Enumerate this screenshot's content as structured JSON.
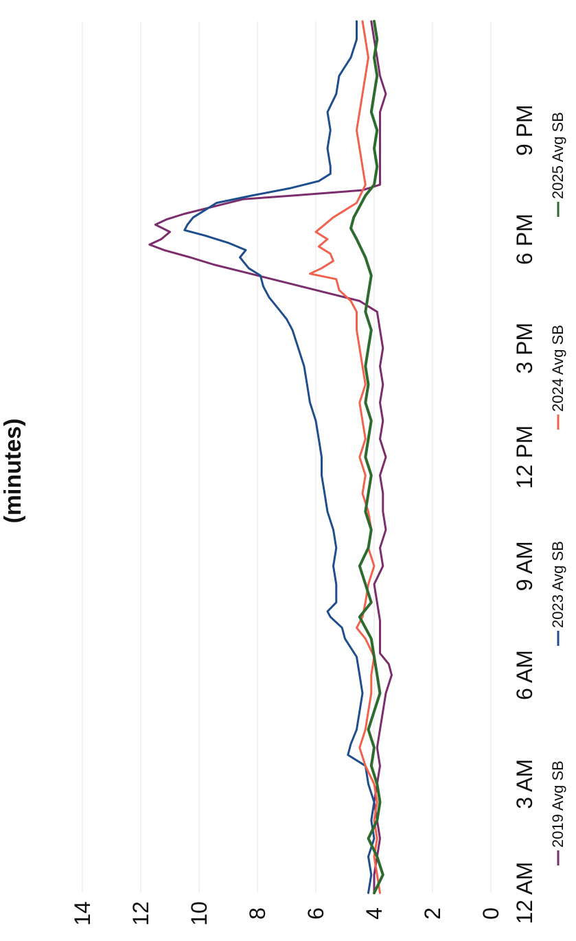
{
  "chart_data": {
    "type": "line",
    "title": "(minutes)",
    "xlabel": "",
    "ylabel": "",
    "ylim": [
      0,
      14
    ],
    "yticks": [
      "0",
      "2",
      "4",
      "6",
      "8",
      "10",
      "12",
      "14"
    ],
    "xticks": [
      "12 AM",
      "3 AM",
      "6 AM",
      "9 AM",
      "12 PM",
      "3 PM",
      "6 PM",
      "9 PM"
    ],
    "xlim_hours": [
      0,
      24
    ],
    "grid": true,
    "legend_position": "bottom",
    "series": [
      {
        "name": "2019 Avg SB",
        "color": "#7b2d6e",
        "points": [
          [
            0,
            4.0
          ],
          [
            0.5,
            4.0
          ],
          [
            1,
            3.9
          ],
          [
            1.5,
            3.8
          ],
          [
            2,
            3.9
          ],
          [
            2.5,
            4.0
          ],
          [
            3,
            3.9
          ],
          [
            3.5,
            3.8
          ],
          [
            4,
            3.9
          ],
          [
            4.5,
            3.8
          ],
          [
            5,
            3.7
          ],
          [
            5.5,
            3.6
          ],
          [
            6,
            3.4
          ],
          [
            6.3,
            3.5
          ],
          [
            6.6,
            3.8
          ],
          [
            7,
            3.8
          ],
          [
            7.5,
            3.8
          ],
          [
            8,
            3.9
          ],
          [
            8.5,
            4.0
          ],
          [
            9,
            3.7
          ],
          [
            9.5,
            3.8
          ],
          [
            10,
            3.6
          ],
          [
            10.5,
            3.7
          ],
          [
            11,
            3.7
          ],
          [
            11.5,
            3.8
          ],
          [
            12,
            3.6
          ],
          [
            12.5,
            3.8
          ],
          [
            13,
            3.7
          ],
          [
            13.5,
            3.8
          ],
          [
            14,
            3.7
          ],
          [
            14.5,
            3.8
          ],
          [
            15,
            3.7
          ],
          [
            15.5,
            3.8
          ],
          [
            16,
            3.9
          ],
          [
            16.3,
            4.5
          ],
          [
            16.5,
            5.5
          ],
          [
            16.7,
            6.5
          ],
          [
            16.9,
            7.5
          ],
          [
            17.1,
            8.5
          ],
          [
            17.3,
            9.5
          ],
          [
            17.5,
            10.3
          ],
          [
            17.7,
            11.2
          ],
          [
            17.85,
            11.7
          ],
          [
            18,
            11.3
          ],
          [
            18.2,
            11.0
          ],
          [
            18.4,
            11.5
          ],
          [
            18.55,
            11.1
          ],
          [
            18.7,
            10.5
          ],
          [
            18.9,
            9.5
          ],
          [
            19.1,
            8.5
          ],
          [
            19.2,
            6.8
          ],
          [
            19.35,
            4.4
          ],
          [
            19.5,
            3.8
          ],
          [
            20,
            3.8
          ],
          [
            20.5,
            3.8
          ],
          [
            21,
            3.8
          ],
          [
            21.5,
            3.8
          ],
          [
            22,
            3.6
          ],
          [
            22.5,
            3.8
          ],
          [
            23,
            3.9
          ],
          [
            23.5,
            4.0
          ],
          [
            24,
            4.1
          ]
        ]
      },
      {
        "name": "2023 Avg SB",
        "color": "#1f4e8c",
        "points": [
          [
            0,
            4.2
          ],
          [
            0.5,
            4.1
          ],
          [
            1,
            4.2
          ],
          [
            1.5,
            4.0
          ],
          [
            2,
            4.1
          ],
          [
            2.5,
            4.0
          ],
          [
            3,
            4.2
          ],
          [
            3.5,
            4.3
          ],
          [
            3.8,
            4.9
          ],
          [
            4.1,
            4.8
          ],
          [
            4.5,
            4.6
          ],
          [
            5,
            4.5
          ],
          [
            5.5,
            4.4
          ],
          [
            6,
            4.5
          ],
          [
            6.5,
            4.6
          ],
          [
            7,
            5.0
          ],
          [
            7.3,
            5.1
          ],
          [
            7.6,
            5.5
          ],
          [
            7.75,
            5.6
          ],
          [
            8,
            5.3
          ],
          [
            8.5,
            5.3
          ],
          [
            9,
            5.4
          ],
          [
            9.5,
            5.3
          ],
          [
            10,
            5.4
          ],
          [
            10.5,
            5.6
          ],
          [
            11,
            5.7
          ],
          [
            11.5,
            5.8
          ],
          [
            12,
            5.8
          ],
          [
            12.5,
            5.9
          ],
          [
            13,
            6.0
          ],
          [
            13.5,
            6.2
          ],
          [
            14,
            6.3
          ],
          [
            14.5,
            6.4
          ],
          [
            15,
            6.6
          ],
          [
            15.5,
            6.8
          ],
          [
            15.8,
            7.0
          ],
          [
            16.1,
            7.3
          ],
          [
            16.4,
            7.6
          ],
          [
            16.7,
            7.8
          ],
          [
            17,
            7.9
          ],
          [
            17.2,
            8.3
          ],
          [
            17.5,
            8.6
          ],
          [
            17.7,
            8.4
          ],
          [
            17.9,
            9.0
          ],
          [
            18.1,
            9.8
          ],
          [
            18.25,
            10.5
          ],
          [
            18.4,
            10.4
          ],
          [
            18.6,
            10.2
          ],
          [
            18.8,
            9.8
          ],
          [
            19,
            9.4
          ],
          [
            19.2,
            8.2
          ],
          [
            19.4,
            6.9
          ],
          [
            19.6,
            5.9
          ],
          [
            19.8,
            5.5
          ],
          [
            20,
            5.5
          ],
          [
            20.5,
            5.6
          ],
          [
            21,
            5.5
          ],
          [
            21.5,
            5.6
          ],
          [
            22,
            5.3
          ],
          [
            22.5,
            5.2
          ],
          [
            23,
            4.8
          ],
          [
            23.5,
            4.6
          ],
          [
            24,
            4.6
          ]
        ]
      },
      {
        "name": "2024 Avg SB",
        "color": "#f0624d",
        "points": [
          [
            0,
            3.8
          ],
          [
            0.5,
            3.9
          ],
          [
            1,
            4.0
          ],
          [
            1.5,
            3.9
          ],
          [
            2,
            4.0
          ],
          [
            2.5,
            3.9
          ],
          [
            3,
            4.0
          ],
          [
            3.5,
            4.3
          ],
          [
            4,
            4.5
          ],
          [
            4.5,
            4.3
          ],
          [
            5,
            4.2
          ],
          [
            5.5,
            4.1
          ],
          [
            6,
            4.1
          ],
          [
            6.5,
            4.0
          ],
          [
            7,
            4.3
          ],
          [
            7.3,
            4.6
          ],
          [
            7.6,
            4.4
          ],
          [
            8,
            4.3
          ],
          [
            8.5,
            4.2
          ],
          [
            9,
            4.0
          ],
          [
            9.5,
            4.2
          ],
          [
            10,
            4.1
          ],
          [
            10.5,
            4.2
          ],
          [
            11,
            4.4
          ],
          [
            11.5,
            4.3
          ],
          [
            12,
            4.5
          ],
          [
            12.5,
            4.3
          ],
          [
            13,
            4.4
          ],
          [
            13.5,
            4.5
          ],
          [
            14,
            4.3
          ],
          [
            14.5,
            4.4
          ],
          [
            15,
            4.5
          ],
          [
            15.5,
            4.6
          ],
          [
            16,
            4.6
          ],
          [
            16.3,
            4.8
          ],
          [
            16.6,
            5.2
          ],
          [
            16.9,
            5.3
          ],
          [
            17.05,
            6.2
          ],
          [
            17.2,
            5.8
          ],
          [
            17.4,
            5.4
          ],
          [
            17.6,
            5.5
          ],
          [
            17.8,
            5.9
          ],
          [
            18,
            5.6
          ],
          [
            18.2,
            6.0
          ],
          [
            18.4,
            5.7
          ],
          [
            18.6,
            5.4
          ],
          [
            18.8,
            5.0
          ],
          [
            19,
            4.6
          ],
          [
            19.5,
            4.3
          ],
          [
            20,
            4.4
          ],
          [
            20.5,
            4.5
          ],
          [
            21,
            4.6
          ],
          [
            21.5,
            4.5
          ],
          [
            22,
            4.4
          ],
          [
            22.5,
            4.3
          ],
          [
            23,
            4.2
          ],
          [
            23.5,
            4.3
          ],
          [
            24,
            4.4
          ]
        ]
      },
      {
        "name": "2025 Avg SB",
        "color": "#2e6b2e",
        "points": [
          [
            0,
            4.0
          ],
          [
            0.5,
            3.7
          ],
          [
            1,
            3.9
          ],
          [
            1.5,
            4.2
          ],
          [
            2,
            3.9
          ],
          [
            2.5,
            3.8
          ],
          [
            3,
            3.9
          ],
          [
            3.5,
            4.1
          ],
          [
            4,
            4.0
          ],
          [
            4.5,
            4.2
          ],
          [
            5,
            4.0
          ],
          [
            5.5,
            3.8
          ],
          [
            6,
            3.9
          ],
          [
            6.5,
            4.0
          ],
          [
            7,
            4.1
          ],
          [
            7.3,
            4.3
          ],
          [
            7.6,
            4.5
          ],
          [
            8,
            4.1
          ],
          [
            8.5,
            4.3
          ],
          [
            9,
            4.5
          ],
          [
            9.5,
            4.2
          ],
          [
            10,
            4.1
          ],
          [
            10.5,
            4.3
          ],
          [
            11,
            4.2
          ],
          [
            11.5,
            4.1
          ],
          [
            12,
            4.3
          ],
          [
            12.5,
            4.2
          ],
          [
            13,
            4.1
          ],
          [
            13.5,
            4.3
          ],
          [
            14,
            4.2
          ],
          [
            14.5,
            4.3
          ],
          [
            15,
            4.2
          ],
          [
            15.5,
            4.1
          ],
          [
            16,
            4.3
          ],
          [
            16.5,
            4.2
          ],
          [
            17,
            4.1
          ],
          [
            17.5,
            4.3
          ],
          [
            18,
            4.6
          ],
          [
            18.3,
            4.8
          ],
          [
            18.6,
            4.7
          ],
          [
            18.9,
            4.5
          ],
          [
            19.2,
            4.3
          ],
          [
            19.5,
            4.0
          ],
          [
            20,
            3.9
          ],
          [
            20.5,
            4.0
          ],
          [
            21,
            3.9
          ],
          [
            21.5,
            4.1
          ],
          [
            22,
            4.0
          ],
          [
            22.5,
            3.9
          ],
          [
            23,
            4.0
          ],
          [
            23.5,
            3.9
          ],
          [
            24,
            4.0
          ]
        ]
      }
    ]
  }
}
